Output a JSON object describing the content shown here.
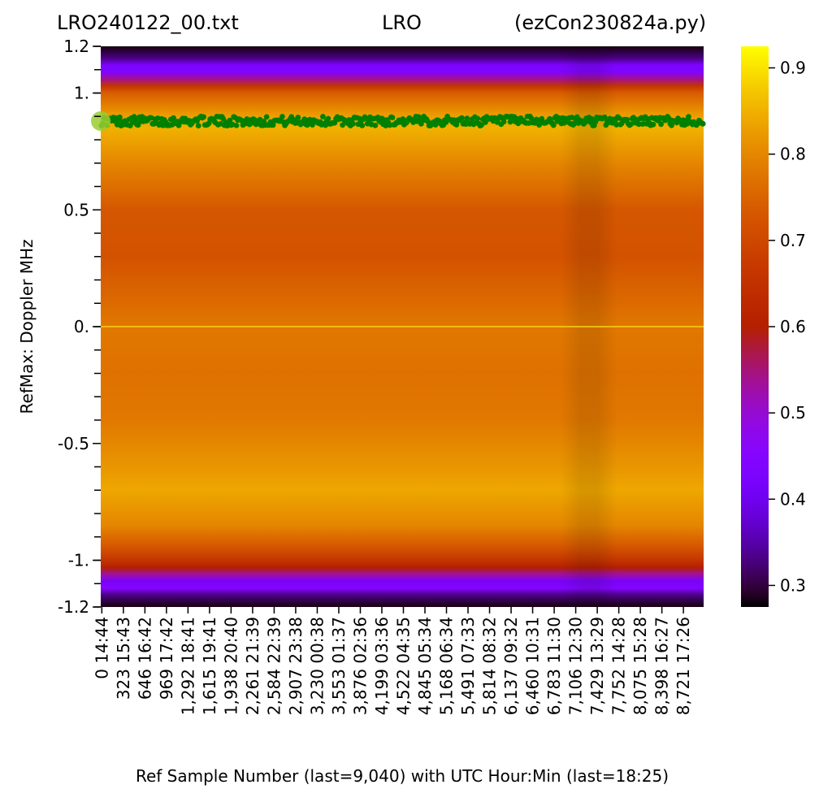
{
  "title": {
    "left": "LRO240122_00.txt",
    "center": "LRO",
    "right": "(ezCon230824a.py)"
  },
  "colors": {
    "dots": "#008000",
    "start_marker": "#9acd32",
    "zero_line": "#f5c518"
  },
  "chart_data": {
    "type": "heatmap",
    "colormap": "gnuplot",
    "xlabel": "Ref Sample Number (last=9,040) with UTC Hour:Min (last=18:25)",
    "ylabel": "RefMax:  Doppler MHz",
    "xlim": [
      0,
      9040
    ],
    "ylim": [
      -1.2,
      1.2
    ],
    "yticks": [
      {
        "value": 1.2,
        "label": "1.2"
      },
      {
        "value": 1.0,
        "label": "1."
      },
      {
        "value": 0.5,
        "label": "0.5"
      },
      {
        "value": 0.0,
        "label": "0."
      },
      {
        "value": -0.5,
        "label": "-0.5"
      },
      {
        "value": -1.0,
        "label": "-1."
      },
      {
        "value": -1.2,
        "label": "-1.2"
      }
    ],
    "xticks": [
      {
        "sample": 0,
        "label": "0",
        "time": "14:44"
      },
      {
        "sample": 323,
        "label": "323",
        "time": "15:43"
      },
      {
        "sample": 646,
        "label": "646",
        "time": "16:42"
      },
      {
        "sample": 969,
        "label": "969",
        "time": "17:42"
      },
      {
        "sample": 1292,
        "label": "1,292",
        "time": "18:41"
      },
      {
        "sample": 1615,
        "label": "1,615",
        "time": "19:41"
      },
      {
        "sample": 1938,
        "label": "1,938",
        "time": "20:40"
      },
      {
        "sample": 2261,
        "label": "2,261",
        "time": "21:39"
      },
      {
        "sample": 2584,
        "label": "2,584",
        "time": "22:39"
      },
      {
        "sample": 2907,
        "label": "2,907",
        "time": "23:38"
      },
      {
        "sample": 3230,
        "label": "3,230",
        "time": "00:38"
      },
      {
        "sample": 3553,
        "label": "3,553",
        "time": "01:37"
      },
      {
        "sample": 3876,
        "label": "3,876",
        "time": "02:36"
      },
      {
        "sample": 4199,
        "label": "4,199",
        "time": "03:36"
      },
      {
        "sample": 4522,
        "label": "4,522",
        "time": "04:35"
      },
      {
        "sample": 4845,
        "label": "4,845",
        "time": "05:34"
      },
      {
        "sample": 5168,
        "label": "5,168",
        "time": "06:34"
      },
      {
        "sample": 5491,
        "label": "5,491",
        "time": "07:33"
      },
      {
        "sample": 5814,
        "label": "5,814",
        "time": "08:32"
      },
      {
        "sample": 6137,
        "label": "6,137",
        "time": "09:32"
      },
      {
        "sample": 6460,
        "label": "6,460",
        "time": "10:31"
      },
      {
        "sample": 6783,
        "label": "6,783",
        "time": "11:30"
      },
      {
        "sample": 7106,
        "label": "7,106",
        "time": "12:30"
      },
      {
        "sample": 7429,
        "label": "7,429",
        "time": "13:29"
      },
      {
        "sample": 7752,
        "label": "7,752",
        "time": "14:28"
      },
      {
        "sample": 8075,
        "label": "8,075",
        "time": "15:28"
      },
      {
        "sample": 8398,
        "label": "8,398",
        "time": "16:27"
      },
      {
        "sample": 8721,
        "label": "8,721",
        "time": "17:26"
      }
    ],
    "doppler_profile": [
      {
        "mhz": 1.2,
        "value": 0.28
      },
      {
        "mhz": 1.15,
        "value": 0.33
      },
      {
        "mhz": 1.12,
        "value": 0.43
      },
      {
        "mhz": 1.09,
        "value": 0.44
      },
      {
        "mhz": 1.06,
        "value": 0.54
      },
      {
        "mhz": 1.03,
        "value": 0.66
      },
      {
        "mhz": 1.0,
        "value": 0.74
      },
      {
        "mhz": 0.9,
        "value": 0.83
      },
      {
        "mhz": 0.85,
        "value": 0.85
      },
      {
        "mhz": 0.7,
        "value": 0.8
      },
      {
        "mhz": 0.5,
        "value": 0.73
      },
      {
        "mhz": 0.3,
        "value": 0.72
      },
      {
        "mhz": 0.1,
        "value": 0.76
      },
      {
        "mhz": 0.0,
        "value": 0.78
      },
      {
        "mhz": -0.2,
        "value": 0.77
      },
      {
        "mhz": -0.4,
        "value": 0.78
      },
      {
        "mhz": -0.6,
        "value": 0.82
      },
      {
        "mhz": -0.7,
        "value": 0.84
      },
      {
        "mhz": -0.85,
        "value": 0.8
      },
      {
        "mhz": -0.95,
        "value": 0.72
      },
      {
        "mhz": -1.0,
        "value": 0.66
      },
      {
        "mhz": -1.03,
        "value": 0.6
      },
      {
        "mhz": -1.06,
        "value": 0.53
      },
      {
        "mhz": -1.09,
        "value": 0.42
      },
      {
        "mhz": -1.12,
        "value": 0.45
      },
      {
        "mhz": -1.15,
        "value": 0.33
      },
      {
        "mhz": -1.2,
        "value": 0.28
      }
    ],
    "refmax_series": {
      "mean_mhz": 0.88,
      "spread_mhz": 0.02,
      "sample_count": 9040
    },
    "colorbar": {
      "range": [
        0.275,
        0.925
      ],
      "ticks": [
        {
          "value": 0.3,
          "label": "0.3"
        },
        {
          "value": 0.4,
          "label": "0.4"
        },
        {
          "value": 0.5,
          "label": "0.5"
        },
        {
          "value": 0.6,
          "label": "0.6"
        },
        {
          "value": 0.7,
          "label": "0.7"
        },
        {
          "value": 0.8,
          "label": "0.8"
        },
        {
          "value": 0.9,
          "label": "0.9"
        }
      ]
    }
  }
}
